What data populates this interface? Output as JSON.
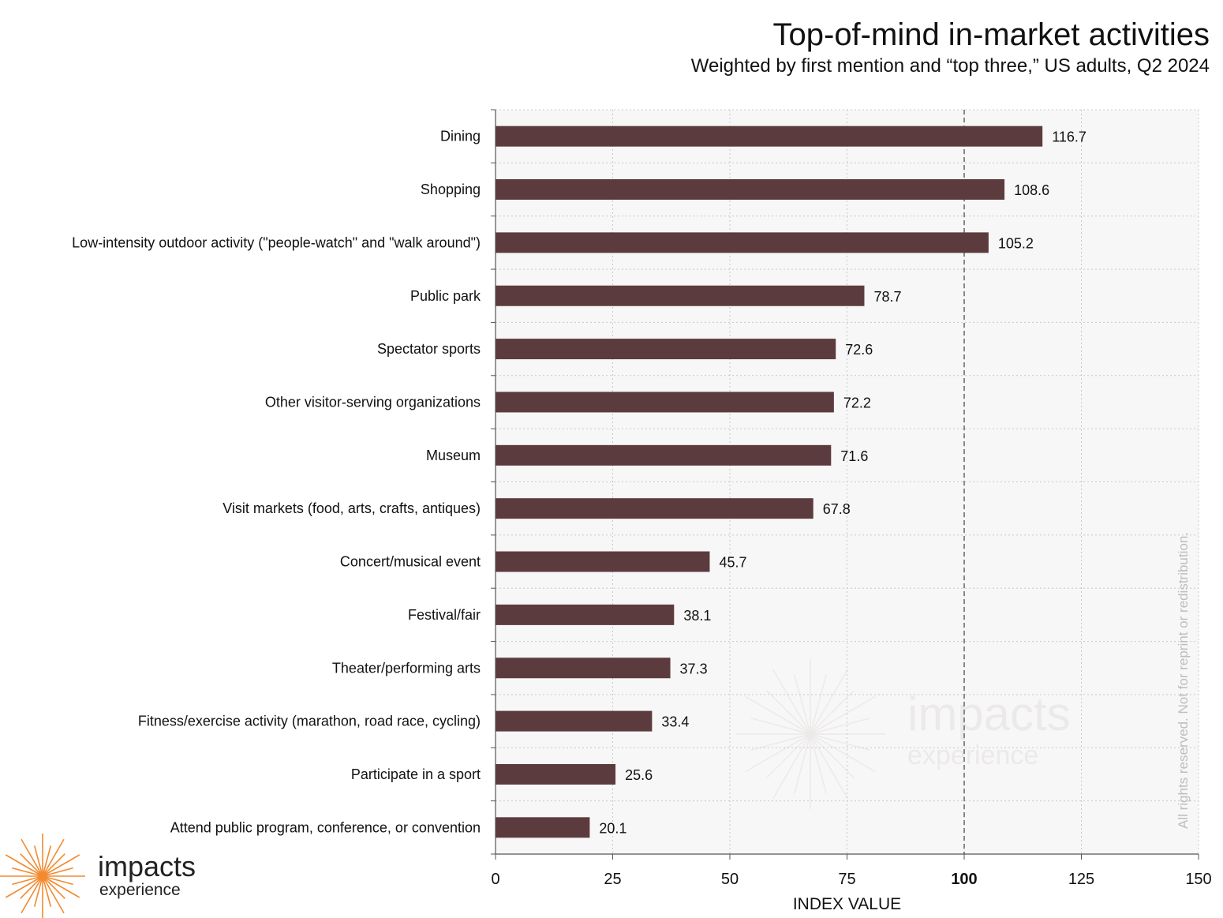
{
  "header": {
    "title": "Top-of-mind in-market activities",
    "subtitle": "Weighted by first mention and “top three,” US adults, Q2 2024"
  },
  "watermark": {
    "rights_text": "All rights reserved. Not for reprint or redistribution.",
    "logo_main": "impacts",
    "logo_sub": "experience"
  },
  "logo": {
    "main": "impacts",
    "sub": "experience"
  },
  "colors": {
    "bar": "#5c3b3e",
    "plot_bg": "#f8f7f7",
    "grid": "#c8c8c8",
    "reference_line": "#888888",
    "logo_orange": "#f28a2e"
  },
  "chart_data": {
    "type": "bar",
    "orientation": "horizontal",
    "categories": [
      "Dining",
      "Shopping",
      "Low-intensity outdoor activity (\"people-watch\" and \"walk around\")",
      "Public park",
      "Spectator sports",
      "Other visitor-serving organizations",
      "Museum",
      "Visit markets (food, arts, crafts, antiques)",
      "Concert/musical event",
      "Festival/fair",
      "Theater/performing arts",
      "Fitness/exercise activity (marathon, road race, cycling)",
      "Participate in a sport",
      "Attend public program, conference, or convention"
    ],
    "values": [
      116.7,
      108.6,
      105.2,
      78.7,
      72.6,
      72.2,
      71.6,
      67.8,
      45.7,
      38.1,
      37.3,
      33.4,
      25.6,
      20.1
    ],
    "value_labels": [
      "116.7",
      "108.6",
      "105.2",
      "78.7",
      "72.6",
      "72.2",
      "71.6",
      "67.8",
      "45.7",
      "38.1",
      "37.3",
      "33.4",
      "25.6",
      "20.1"
    ],
    "xlabel": "INDEX VALUE",
    "ylabel": "",
    "xlim": [
      0,
      150
    ],
    "xticks": [
      0,
      25,
      50,
      75,
      100,
      125,
      150
    ],
    "xtick_labels": [
      "0",
      "25",
      "50",
      "75",
      "100",
      "125",
      "150"
    ],
    "bold_tick": 100,
    "reference_line": 100,
    "grid": true
  }
}
